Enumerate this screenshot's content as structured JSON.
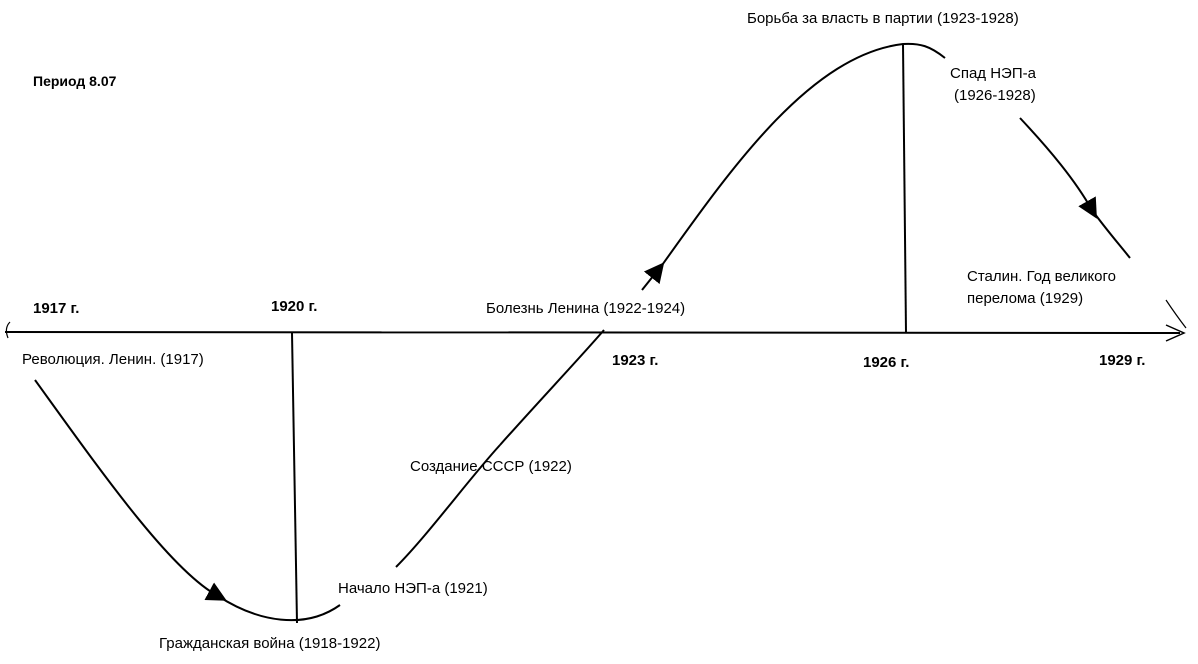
{
  "title": "Период 8.07",
  "years": [
    "1917 г.",
    "1920 г.",
    "1923 г.",
    "1926 г.",
    "1929 г."
  ],
  "events": {
    "revolution": "Революция. Ленин. (1917)",
    "civil_war": "Гражданская война  (1918-1922)",
    "nep_start": "Начало НЭП-а (1921)",
    "ussr": "Создание СССР (1922)",
    "lenin_illness": "Болезнь Ленина (1922-1924)",
    "power_struggle": "Борьба за власть в партии (1923-1928)",
    "nep_decline": "Спад НЭП-а",
    "nep_decline_years": "(1926-1928)",
    "stalin_1": "Сталин. Год великого",
    "stalin_2": "перелома (1929)"
  }
}
